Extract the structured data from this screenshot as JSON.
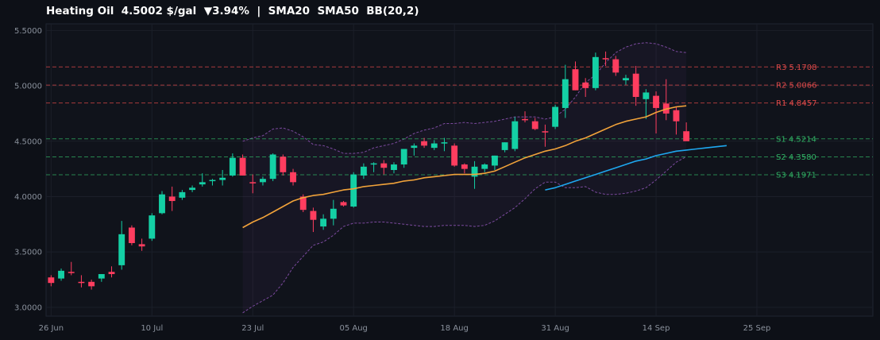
{
  "header": {
    "instrument": "Heating Oil",
    "price": "4.5002 $/gal",
    "change": "▼3.94%",
    "separator": "|",
    "indicators": "SMA20  SMA50  BB(20,2)"
  },
  "colors": {
    "background": "#0d1017",
    "plot_background": "#10131b",
    "grid": "#1b1f29",
    "up": "#14d0a5",
    "down": "#ff3d5f",
    "sma20": "#f2a33a",
    "sma50": "#1ea8f0",
    "bollinger": "#7b4a9e",
    "resistance": "#d94848",
    "support": "#2fae62"
  },
  "chart_data": {
    "type": "candlestick",
    "title": "Heating Oil  4.5002 $/gal  ▼3.94%  |  SMA20  SMA50  BB(20,2)",
    "ylim": [
      2.92,
      5.56
    ],
    "y_ticks": [
      "3.0000",
      "3.5000",
      "4.0000",
      "4.5000",
      "5.0000",
      "5.5000"
    ],
    "y_tick_values": [
      3.0,
      3.5,
      4.0,
      4.5,
      5.0,
      5.5
    ],
    "x_tick_labels": [
      "26 Jun",
      "10 Jul",
      "23 Jul",
      "05 Aug",
      "18 Aug",
      "31 Aug",
      "14 Sep",
      "25 Sep"
    ],
    "x_tick_indices": [
      0,
      10,
      20,
      30,
      40,
      50,
      60,
      70
    ],
    "x_range": [
      -0.5,
      81.5
    ],
    "grid": true,
    "candles": [
      [
        3.27,
        3.29,
        3.19,
        3.22
      ],
      [
        3.26,
        3.35,
        3.24,
        3.33
      ],
      [
        3.32,
        3.41,
        3.29,
        3.31
      ],
      [
        3.23,
        3.29,
        3.18,
        3.22
      ],
      [
        3.23,
        3.25,
        3.16,
        3.19
      ],
      [
        3.26,
        3.3,
        3.23,
        3.3
      ],
      [
        3.32,
        3.37,
        3.27,
        3.3
      ],
      [
        3.38,
        3.78,
        3.34,
        3.66
      ],
      [
        3.72,
        3.74,
        3.56,
        3.58
      ],
      [
        3.57,
        3.62,
        3.51,
        3.55
      ],
      [
        3.62,
        3.85,
        3.6,
        3.83
      ],
      [
        3.85,
        4.05,
        3.84,
        4.02
      ],
      [
        4.0,
        4.09,
        3.87,
        3.96
      ],
      [
        3.99,
        4.06,
        3.97,
        4.04
      ],
      [
        4.06,
        4.1,
        4.04,
        4.08
      ],
      [
        4.11,
        4.21,
        4.09,
        4.13
      ],
      [
        4.14,
        4.16,
        4.1,
        4.15
      ],
      [
        4.15,
        4.24,
        4.1,
        4.17
      ],
      [
        4.19,
        4.39,
        4.18,
        4.35
      ],
      [
        4.35,
        4.38,
        4.19,
        4.19
      ],
      [
        4.13,
        4.2,
        4.03,
        4.12
      ],
      [
        4.13,
        4.18,
        4.1,
        4.16
      ],
      [
        4.16,
        4.39,
        4.14,
        4.38
      ],
      [
        4.36,
        4.38,
        4.19,
        4.22
      ],
      [
        4.22,
        4.25,
        4.1,
        4.13
      ],
      [
        4.0,
        4.02,
        3.86,
        3.88
      ],
      [
        3.87,
        3.9,
        3.68,
        3.79
      ],
      [
        3.73,
        3.84,
        3.7,
        3.8
      ],
      [
        3.8,
        3.97,
        3.74,
        3.89
      ],
      [
        3.95,
        3.96,
        3.91,
        3.92
      ],
      [
        3.91,
        4.22,
        3.9,
        4.2
      ],
      [
        4.19,
        4.3,
        4.16,
        4.27
      ],
      [
        4.29,
        4.31,
        4.22,
        4.3
      ],
      [
        4.3,
        4.33,
        4.2,
        4.26
      ],
      [
        4.24,
        4.31,
        4.21,
        4.29
      ],
      [
        4.29,
        4.43,
        4.26,
        4.43
      ],
      [
        4.44,
        4.48,
        4.37,
        4.46
      ],
      [
        4.5,
        4.53,
        4.44,
        4.46
      ],
      [
        4.44,
        4.51,
        4.42,
        4.48
      ],
      [
        4.48,
        4.53,
        4.41,
        4.49
      ],
      [
        4.46,
        4.48,
        4.27,
        4.28
      ],
      [
        4.29,
        4.3,
        4.21,
        4.25
      ],
      [
        4.18,
        4.32,
        4.07,
        4.27
      ],
      [
        4.25,
        4.3,
        4.22,
        4.29
      ],
      [
        4.28,
        4.37,
        4.24,
        4.37
      ],
      [
        4.42,
        4.49,
        4.4,
        4.49
      ],
      [
        4.43,
        4.72,
        4.41,
        4.68
      ],
      [
        4.7,
        4.77,
        4.67,
        4.69
      ],
      [
        4.68,
        4.71,
        4.6,
        4.61
      ],
      [
        4.59,
        4.65,
        4.45,
        4.58
      ],
      [
        4.63,
        4.83,
        4.61,
        4.81
      ],
      [
        4.8,
        5.19,
        4.71,
        5.06
      ],
      [
        5.15,
        5.22,
        4.96,
        4.96
      ],
      [
        5.03,
        5.07,
        4.9,
        4.98
      ],
      [
        4.98,
        5.3,
        4.96,
        5.26
      ],
      [
        5.25,
        5.31,
        5.18,
        5.24
      ],
      [
        5.24,
        5.27,
        5.09,
        5.12
      ],
      [
        5.05,
        5.1,
        5.01,
        5.07
      ],
      [
        5.11,
        5.18,
        4.82,
        4.9
      ],
      [
        4.88,
        4.97,
        4.7,
        4.94
      ],
      [
        4.91,
        4.95,
        4.57,
        4.8
      ],
      [
        4.84,
        5.06,
        4.69,
        4.75
      ],
      [
        4.78,
        4.81,
        4.56,
        4.68
      ],
      [
        4.59,
        4.67,
        4.52,
        4.5
      ]
    ],
    "sma20": {
      "start_index": 19,
      "values": [
        3.72,
        3.77,
        3.81,
        3.86,
        3.91,
        3.96,
        3.99,
        4.01,
        4.02,
        4.04,
        4.06,
        4.07,
        4.09,
        4.1,
        4.11,
        4.12,
        4.14,
        4.15,
        4.17,
        4.18,
        4.19,
        4.2,
        4.2,
        4.2,
        4.21,
        4.23,
        4.27,
        4.31,
        4.35,
        4.38,
        4.41,
        4.43,
        4.46,
        4.5,
        4.53,
        4.57,
        4.61,
        4.65,
        4.68,
        4.7,
        4.72,
        4.76,
        4.79,
        4.81,
        4.82
      ]
    },
    "sma50": {
      "start_index": 49,
      "values": [
        4.06,
        4.08,
        4.11,
        4.14,
        4.17,
        4.2,
        4.23,
        4.26,
        4.29,
        4.32,
        4.34,
        4.37,
        4.39,
        4.41,
        4.42,
        4.43,
        4.44,
        4.45,
        4.46
      ]
    },
    "bollinger_upper": {
      "start_index": 19,
      "values": [
        4.5,
        4.53,
        4.55,
        4.61,
        4.62,
        4.59,
        4.54,
        4.47,
        4.46,
        4.43,
        4.39,
        4.39,
        4.4,
        4.44,
        4.46,
        4.48,
        4.52,
        4.57,
        4.6,
        4.62,
        4.66,
        4.66,
        4.67,
        4.66,
        4.67,
        4.68,
        4.7,
        4.72,
        4.72,
        4.72,
        4.7,
        4.72,
        4.79,
        4.9,
        5.03,
        5.1,
        5.21,
        5.3,
        5.35,
        5.38,
        5.39,
        5.38,
        5.35,
        5.31,
        5.3
      ]
    },
    "bollinger_lower": {
      "start_index": 19,
      "values": [
        2.95,
        3.01,
        3.06,
        3.11,
        3.22,
        3.36,
        3.46,
        3.56,
        3.59,
        3.65,
        3.73,
        3.76,
        3.76,
        3.77,
        3.77,
        3.76,
        3.75,
        3.74,
        3.73,
        3.73,
        3.74,
        3.74,
        3.74,
        3.73,
        3.74,
        3.78,
        3.84,
        3.9,
        3.98,
        4.07,
        4.13,
        4.13,
        4.08,
        4.08,
        4.09,
        4.04,
        4.02,
        4.02,
        4.03,
        4.05,
        4.08,
        4.15,
        4.23,
        4.31,
        4.36
      ]
    },
    "levels": [
      {
        "label": "R3",
        "value_text": "5.1708",
        "value": 5.1708,
        "kind": "resistance"
      },
      {
        "label": "R2",
        "value_text": "5.0066",
        "value": 5.0066,
        "kind": "resistance"
      },
      {
        "label": "R1",
        "value_text": "4.8457",
        "value": 4.8457,
        "kind": "resistance"
      },
      {
        "label": "S1",
        "value_text": "4.5214",
        "value": 4.5214,
        "kind": "support"
      },
      {
        "label": "S2",
        "value_text": "4.3580",
        "value": 4.358,
        "kind": "support"
      },
      {
        "label": "S3",
        "value_text": "4.1971",
        "value": 4.1971,
        "kind": "support"
      }
    ]
  }
}
